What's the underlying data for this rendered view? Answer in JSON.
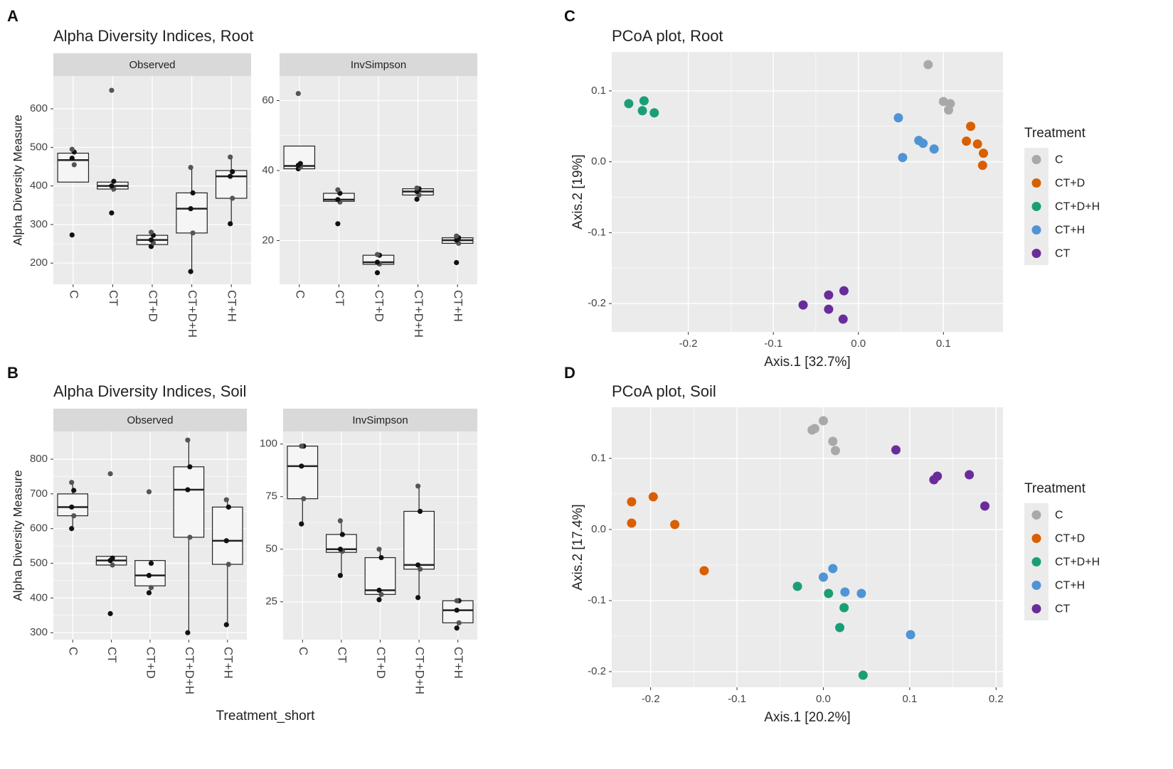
{
  "colors": {
    "panel_bg": "#ebebeb",
    "grid": "#ffffff",
    "strip_bg": "#d9d9d9",
    "C": "#a9a9a9",
    "CT+D": "#d95f02",
    "CT+D+H": "#1b9e77",
    "CT+H": "#4f94d4",
    "CT": "#6a2c9a"
  },
  "chart_data": [
    {
      "id": "A",
      "type": "box",
      "panel_letter": "A",
      "title": "Alpha Diversity Indices, Root",
      "ylabel": "Alpha Diversity Measure",
      "categories": [
        "C",
        "CT",
        "CT+D",
        "CT+D+H",
        "CT+H"
      ],
      "facets": [
        {
          "name": "Observed",
          "ylim": [
            145,
            685
          ],
          "yticks": [
            200,
            300,
            400,
            500,
            600
          ],
          "boxes": [
            {
              "category": "C",
              "min": 410,
              "q1": 410,
              "median": 467,
              "q3": 485,
              "max": 495,
              "points": [
                273,
                455,
                472,
                488,
                495
              ]
            },
            {
              "category": "CT",
              "min": 385,
              "q1": 392,
              "median": 400,
              "q3": 410,
              "max": 413,
              "points": [
                330,
                392,
                400,
                412,
                648
              ]
            },
            {
              "category": "CT+D",
              "min": 243,
              "q1": 248,
              "median": 260,
              "q3": 272,
              "max": 280,
              "points": [
                243,
                252,
                260,
                272,
                280
              ]
            },
            {
              "category": "CT+D+H",
              "min": 178,
              "q1": 278,
              "median": 341,
              "q3": 382,
              "max": 448,
              "points": [
                178,
                278,
                341,
                382,
                448
              ]
            },
            {
              "category": "CT+H",
              "min": 302,
              "q1": 368,
              "median": 425,
              "q3": 440,
              "max": 475,
              "points": [
                302,
                368,
                425,
                437,
                475
              ]
            }
          ]
        },
        {
          "name": "InvSimpson",
          "ylim": [
            7.5,
            67
          ],
          "yticks": [
            20,
            40,
            60
          ],
          "boxes": [
            {
              "category": "C",
              "min": 40.5,
              "q1": 40.5,
              "median": 41.3,
              "q3": 47,
              "max": 47,
              "points": [
                40.5,
                41,
                41.5,
                42,
                62
              ]
            },
            {
              "category": "CT",
              "min": 30.5,
              "q1": 31.2,
              "median": 31.7,
              "q3": 33.5,
              "max": 34.5,
              "points": [
                24.8,
                31,
                31.7,
                33.5,
                34.5
              ]
            },
            {
              "category": "CT+D",
              "min": 13,
              "q1": 13.2,
              "median": 13.8,
              "q3": 15.8,
              "max": 16,
              "points": [
                10.8,
                13.3,
                13.8,
                15.8,
                16
              ]
            },
            {
              "category": "CT+D+H",
              "min": 32.5,
              "q1": 33,
              "median": 34,
              "q3": 34.8,
              "max": 35,
              "points": [
                31.8,
                33,
                34,
                34.8,
                35
              ]
            },
            {
              "category": "CT+H",
              "min": 18.8,
              "q1": 19.2,
              "median": 20.1,
              "q3": 20.8,
              "max": 21.3,
              "points": [
                13.7,
                19.2,
                20.1,
                20.8,
                21.3
              ]
            }
          ]
        }
      ]
    },
    {
      "id": "B",
      "type": "box",
      "panel_letter": "B",
      "title": "Alpha Diversity Indices, Soil",
      "ylabel": "Alpha Diversity Measure",
      "xlabel": "Treatment_short",
      "categories": [
        "C",
        "CT",
        "CT+D",
        "CT+D+H",
        "CT+H"
      ],
      "facets": [
        {
          "name": "Observed",
          "ylim": [
            280,
            880
          ],
          "yticks": [
            300,
            400,
            500,
            600,
            700,
            800
          ],
          "boxes": [
            {
              "category": "C",
              "min": 600,
              "q1": 637,
              "median": 662,
              "q3": 700,
              "max": 733,
              "points": [
                600,
                637,
                662,
                710,
                733
              ]
            },
            {
              "category": "CT",
              "min": 493,
              "q1": 495,
              "median": 508,
              "q3": 520,
              "max": 520,
              "points": [
                355,
                495,
                508,
                515,
                758
              ]
            },
            {
              "category": "CT+D",
              "min": 415,
              "q1": 435,
              "median": 465,
              "q3": 508,
              "max": 508,
              "points": [
                415,
                430,
                465,
                500,
                706
              ]
            },
            {
              "category": "CT+D+H",
              "min": 300,
              "q1": 575,
              "median": 712,
              "q3": 778,
              "max": 855,
              "points": [
                300,
                575,
                712,
                778,
                855
              ]
            },
            {
              "category": "CT+H",
              "min": 323,
              "q1": 497,
              "median": 565,
              "q3": 662,
              "max": 683,
              "points": [
                323,
                497,
                565,
                662,
                683
              ]
            }
          ]
        },
        {
          "name": "InvSimpson",
          "ylim": [
            7,
            106
          ],
          "yticks": [
            25,
            50,
            75,
            100
          ],
          "boxes": [
            {
              "category": "C",
              "min": 62,
              "q1": 74,
              "median": 89.5,
              "q3": 99,
              "max": 99,
              "points": [
                62,
                74,
                89.5,
                99,
                99
              ]
            },
            {
              "category": "CT",
              "min": 37.5,
              "q1": 48.5,
              "median": 50,
              "q3": 57,
              "max": 63.5,
              "points": [
                37.5,
                49,
                50,
                57,
                63.5
              ]
            },
            {
              "category": "CT+D",
              "min": 26,
              "q1": 28.5,
              "median": 30.5,
              "q3": 46,
              "max": 50,
              "points": [
                26,
                28.5,
                30.5,
                46,
                50
              ]
            },
            {
              "category": "CT+D+H",
              "min": 27,
              "q1": 40.5,
              "median": 42.5,
              "q3": 68,
              "max": 80,
              "points": [
                27,
                40.5,
                42.5,
                68,
                80
              ]
            },
            {
              "category": "CT+H",
              "min": 12.5,
              "q1": 15,
              "median": 21,
              "q3": 25.5,
              "max": 25.5,
              "points": [
                12.5,
                15,
                21,
                25.5,
                25.5
              ]
            }
          ]
        }
      ]
    },
    {
      "id": "C",
      "type": "scatter",
      "panel_letter": "C",
      "title": "PCoA plot, Root",
      "xlabel": "Axis.1   [32.7%]",
      "ylabel": "Axis.2   [19%]",
      "xlim": [
        -0.29,
        0.17
      ],
      "ylim": [
        -0.24,
        0.155
      ],
      "xticks": [
        -0.2,
        -0.1,
        0.0,
        0.1
      ],
      "xtick_labels": [
        "-0.2",
        "-0.1",
        "0.0",
        "0.1"
      ],
      "yticks": [
        -0.2,
        -0.1,
        0.0,
        0.1
      ],
      "ytick_labels": [
        "-0.2",
        "-0.1",
        "0.0",
        "0.1"
      ],
      "legend_title": "Treatment",
      "legend": [
        "C",
        "CT+D",
        "CT+D+H",
        "CT+H",
        "CT"
      ],
      "series": [
        {
          "name": "C",
          "x": [
            0.082,
            0.1,
            0.108,
            0.106
          ],
          "y": [
            0.137,
            0.085,
            0.082,
            0.073
          ]
        },
        {
          "name": "CT+D",
          "x": [
            0.132,
            0.127,
            0.14,
            0.147,
            0.146
          ],
          "y": [
            0.05,
            0.029,
            0.025,
            0.012,
            -0.005
          ]
        },
        {
          "name": "CT+D+H",
          "x": [
            -0.27,
            -0.252,
            -0.254,
            -0.24
          ],
          "y": [
            0.082,
            0.086,
            0.072,
            0.069
          ]
        },
        {
          "name": "CT+H",
          "x": [
            0.047,
            0.052,
            0.071,
            0.076,
            0.089
          ],
          "y": [
            0.062,
            0.006,
            0.03,
            0.026,
            0.018
          ]
        },
        {
          "name": "CT",
          "x": [
            -0.065,
            -0.035,
            -0.035,
            -0.017,
            -0.018
          ],
          "y": [
            -0.202,
            -0.188,
            -0.208,
            -0.182,
            -0.222
          ]
        }
      ]
    },
    {
      "id": "D",
      "type": "scatter",
      "panel_letter": "D",
      "title": "PCoA plot, Soil",
      "xlabel": "Axis.1   [20.2%]",
      "ylabel": "Axis.2   [17.4%]",
      "xlim": [
        -0.245,
        0.208
      ],
      "ylim": [
        -0.222,
        0.172
      ],
      "xticks": [
        -0.2,
        -0.1,
        0.0,
        0.1,
        0.2
      ],
      "xtick_labels": [
        "-0.2",
        "-0.1",
        "0.0",
        "0.1",
        "0.2"
      ],
      "yticks": [
        -0.2,
        -0.1,
        0.0,
        0.1
      ],
      "ytick_labels": [
        "-0.2",
        "-0.1",
        "0.0",
        "0.1"
      ],
      "legend_title": "Treatment",
      "legend": [
        "C",
        "CT+D",
        "CT+D+H",
        "CT+H",
        "CT"
      ],
      "series": [
        {
          "name": "C",
          "x": [
            -0.013,
            -0.01,
            0.0,
            0.011,
            0.014
          ],
          "y": [
            0.14,
            0.142,
            0.153,
            0.124,
            0.111
          ]
        },
        {
          "name": "CT+D",
          "x": [
            -0.222,
            -0.222,
            -0.197,
            -0.172,
            -0.138
          ],
          "y": [
            0.039,
            0.009,
            0.046,
            0.007,
            -0.058
          ]
        },
        {
          "name": "CT+D+H",
          "x": [
            -0.03,
            0.006,
            0.024,
            0.019,
            0.046
          ],
          "y": [
            -0.08,
            -0.09,
            -0.11,
            -0.138,
            -0.205
          ]
        },
        {
          "name": "CT+H",
          "x": [
            0.0,
            0.011,
            0.025,
            0.044,
            0.101
          ],
          "y": [
            -0.067,
            -0.055,
            -0.088,
            -0.09,
            -0.148
          ]
        },
        {
          "name": "CT",
          "x": [
            0.084,
            0.128,
            0.132,
            0.169,
            0.187
          ],
          "y": [
            0.112,
            0.07,
            0.075,
            0.077,
            0.033
          ]
        }
      ]
    }
  ]
}
